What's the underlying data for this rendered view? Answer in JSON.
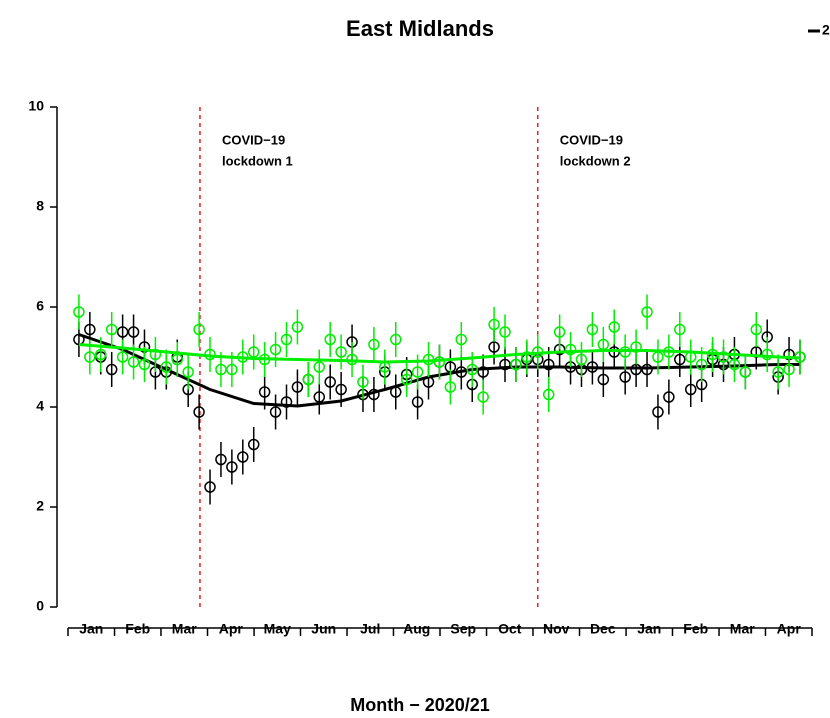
{
  "chart_data": {
    "type": "scatter",
    "title": "East Midlands",
    "x_label": "Month − 2020/21",
    "legend_text": "2",
    "x_month_labels": [
      "Jan",
      "Feb",
      "Mar",
      "Apr",
      "May",
      "Jun",
      "Jul",
      "Aug",
      "Sep",
      "Oct",
      "Nov",
      "Dec",
      "Jan",
      "Feb",
      "Mar",
      "Apr"
    ],
    "x_month_ticks": [
      0,
      4.26,
      8.51,
      12.77,
      17.03,
      21.28,
      25.54,
      29.79,
      34.05,
      38.31,
      42.56,
      46.82,
      51.08,
      55.33,
      59.59,
      63.84,
      68.1
    ],
    "xlim": [
      0,
      68.1
    ],
    "ylim": [
      0,
      10
    ],
    "yticks": [
      0,
      2,
      4,
      6,
      8,
      10
    ],
    "x": [
      1,
      2,
      3,
      4,
      5,
      6,
      7,
      8,
      9,
      10,
      11,
      12,
      13,
      14,
      15,
      16,
      17,
      18,
      19,
      20,
      21,
      22,
      23,
      24,
      25,
      26,
      27,
      28,
      29,
      30,
      31,
      32,
      33,
      34,
      35,
      36,
      37,
      38,
      39,
      40,
      41,
      42,
      43,
      44,
      45,
      46,
      47,
      48,
      49,
      50,
      51,
      52,
      53,
      54,
      55,
      56,
      57,
      58,
      59,
      60,
      61,
      62,
      63,
      64,
      65,
      66,
      67
    ],
    "series": [
      {
        "color": "#000000",
        "error": 0.35,
        "values": [
          5.35,
          5.55,
          5.0,
          4.75,
          5.5,
          5.5,
          5.2,
          4.7,
          4.7,
          5.0,
          4.35,
          3.9,
          2.4,
          2.95,
          2.8,
          3.0,
          3.25,
          4.3,
          3.9,
          4.1,
          4.4,
          4.55,
          4.2,
          4.5,
          4.35,
          5.3,
          4.25,
          4.25,
          4.7,
          4.3,
          4.65,
          4.1,
          4.5,
          4.9,
          4.8,
          4.7,
          4.45,
          4.7,
          5.2,
          4.85,
          4.85,
          4.95,
          4.95,
          4.85,
          5.15,
          4.8,
          4.75,
          4.8,
          4.55,
          5.1,
          4.6,
          4.75,
          4.75,
          3.9,
          4.2,
          4.95,
          4.35,
          4.45,
          4.95,
          4.85,
          5.05,
          4.7,
          5.1,
          5.4,
          4.6,
          5.05,
          5.0
        ],
        "trend": [
          5.45,
          5.15,
          4.75,
          4.35,
          4.07,
          4.02,
          4.12,
          4.35,
          4.6,
          4.75,
          4.8,
          4.8,
          4.78,
          4.78,
          4.8,
          4.82,
          4.85,
          4.85
        ]
      },
      {
        "color": "#00ee00",
        "error": 0.35,
        "values": [
          5.9,
          5.0,
          5.05,
          5.55,
          5.0,
          4.9,
          4.85,
          5.05,
          4.8,
          4.95,
          4.7,
          5.55,
          5.05,
          4.75,
          4.75,
          5.0,
          5.1,
          4.95,
          5.15,
          5.35,
          5.6,
          4.55,
          4.8,
          5.35,
          5.1,
          4.95,
          4.5,
          5.25,
          4.8,
          5.35,
          4.55,
          4.7,
          4.95,
          4.9,
          4.4,
          5.35,
          4.75,
          4.2,
          5.65,
          5.5,
          4.85,
          5.0,
          5.1,
          4.25,
          5.5,
          5.15,
          4.95,
          5.55,
          5.25,
          5.6,
          5.1,
          5.2,
          5.9,
          5.0,
          5.1,
          5.55,
          5.0,
          4.85,
          5.05,
          5.0,
          4.85,
          4.7,
          5.55,
          5.05,
          4.7,
          4.75,
          5.0
        ],
        "trend": [
          5.25,
          5.18,
          5.1,
          5.02,
          4.97,
          4.95,
          4.93,
          4.9,
          4.92,
          4.98,
          5.05,
          5.1,
          5.13,
          5.13,
          5.1,
          5.05,
          5.0,
          4.98
        ]
      }
    ],
    "trend_x": [
      1,
      5,
      9,
      13,
      17,
      21,
      25,
      29,
      33,
      37,
      41,
      45,
      49,
      53,
      57,
      61,
      65,
      67
    ],
    "lockdowns": [
      {
        "x": 12.08,
        "lines": [
          "COVID−19",
          "lockdown 1"
        ]
      },
      {
        "x": 43.0,
        "lines": [
          "COVID−19",
          "lockdown 2"
        ]
      }
    ],
    "lockdown_color": "#e00000"
  }
}
